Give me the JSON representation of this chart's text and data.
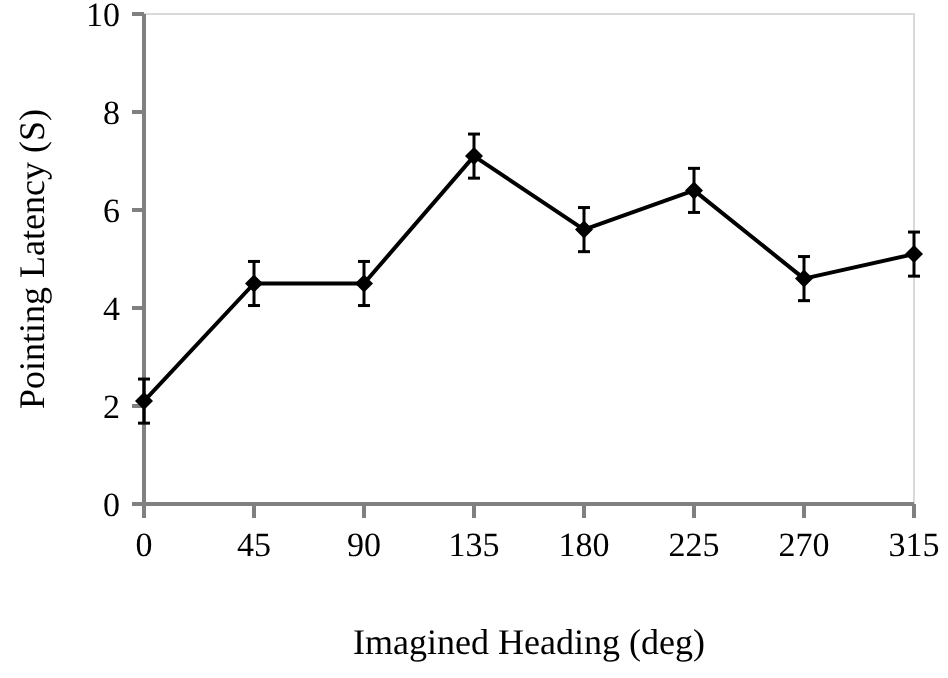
{
  "chart_data": {
    "type": "line",
    "xlabel": "Imagined Heading (deg)",
    "ylabel": "Pointing Latency (S)",
    "x": [
      0,
      45,
      90,
      135,
      180,
      225,
      270,
      315
    ],
    "values": [
      2.1,
      4.5,
      4.5,
      7.1,
      5.6,
      6.4,
      4.6,
      5.1
    ],
    "errors": [
      0.45,
      0.45,
      0.45,
      0.45,
      0.45,
      0.45,
      0.45,
      0.45
    ],
    "color": "#000000",
    "marker": "diamond",
    "line_style": "solid",
    "grid": false,
    "xlim": [
      0,
      315
    ],
    "xticks": [
      0,
      45,
      90,
      135,
      180,
      225,
      270,
      315
    ],
    "ylim": [
      0,
      10
    ],
    "yticks": [
      0,
      2,
      4,
      6,
      8,
      10
    ]
  }
}
